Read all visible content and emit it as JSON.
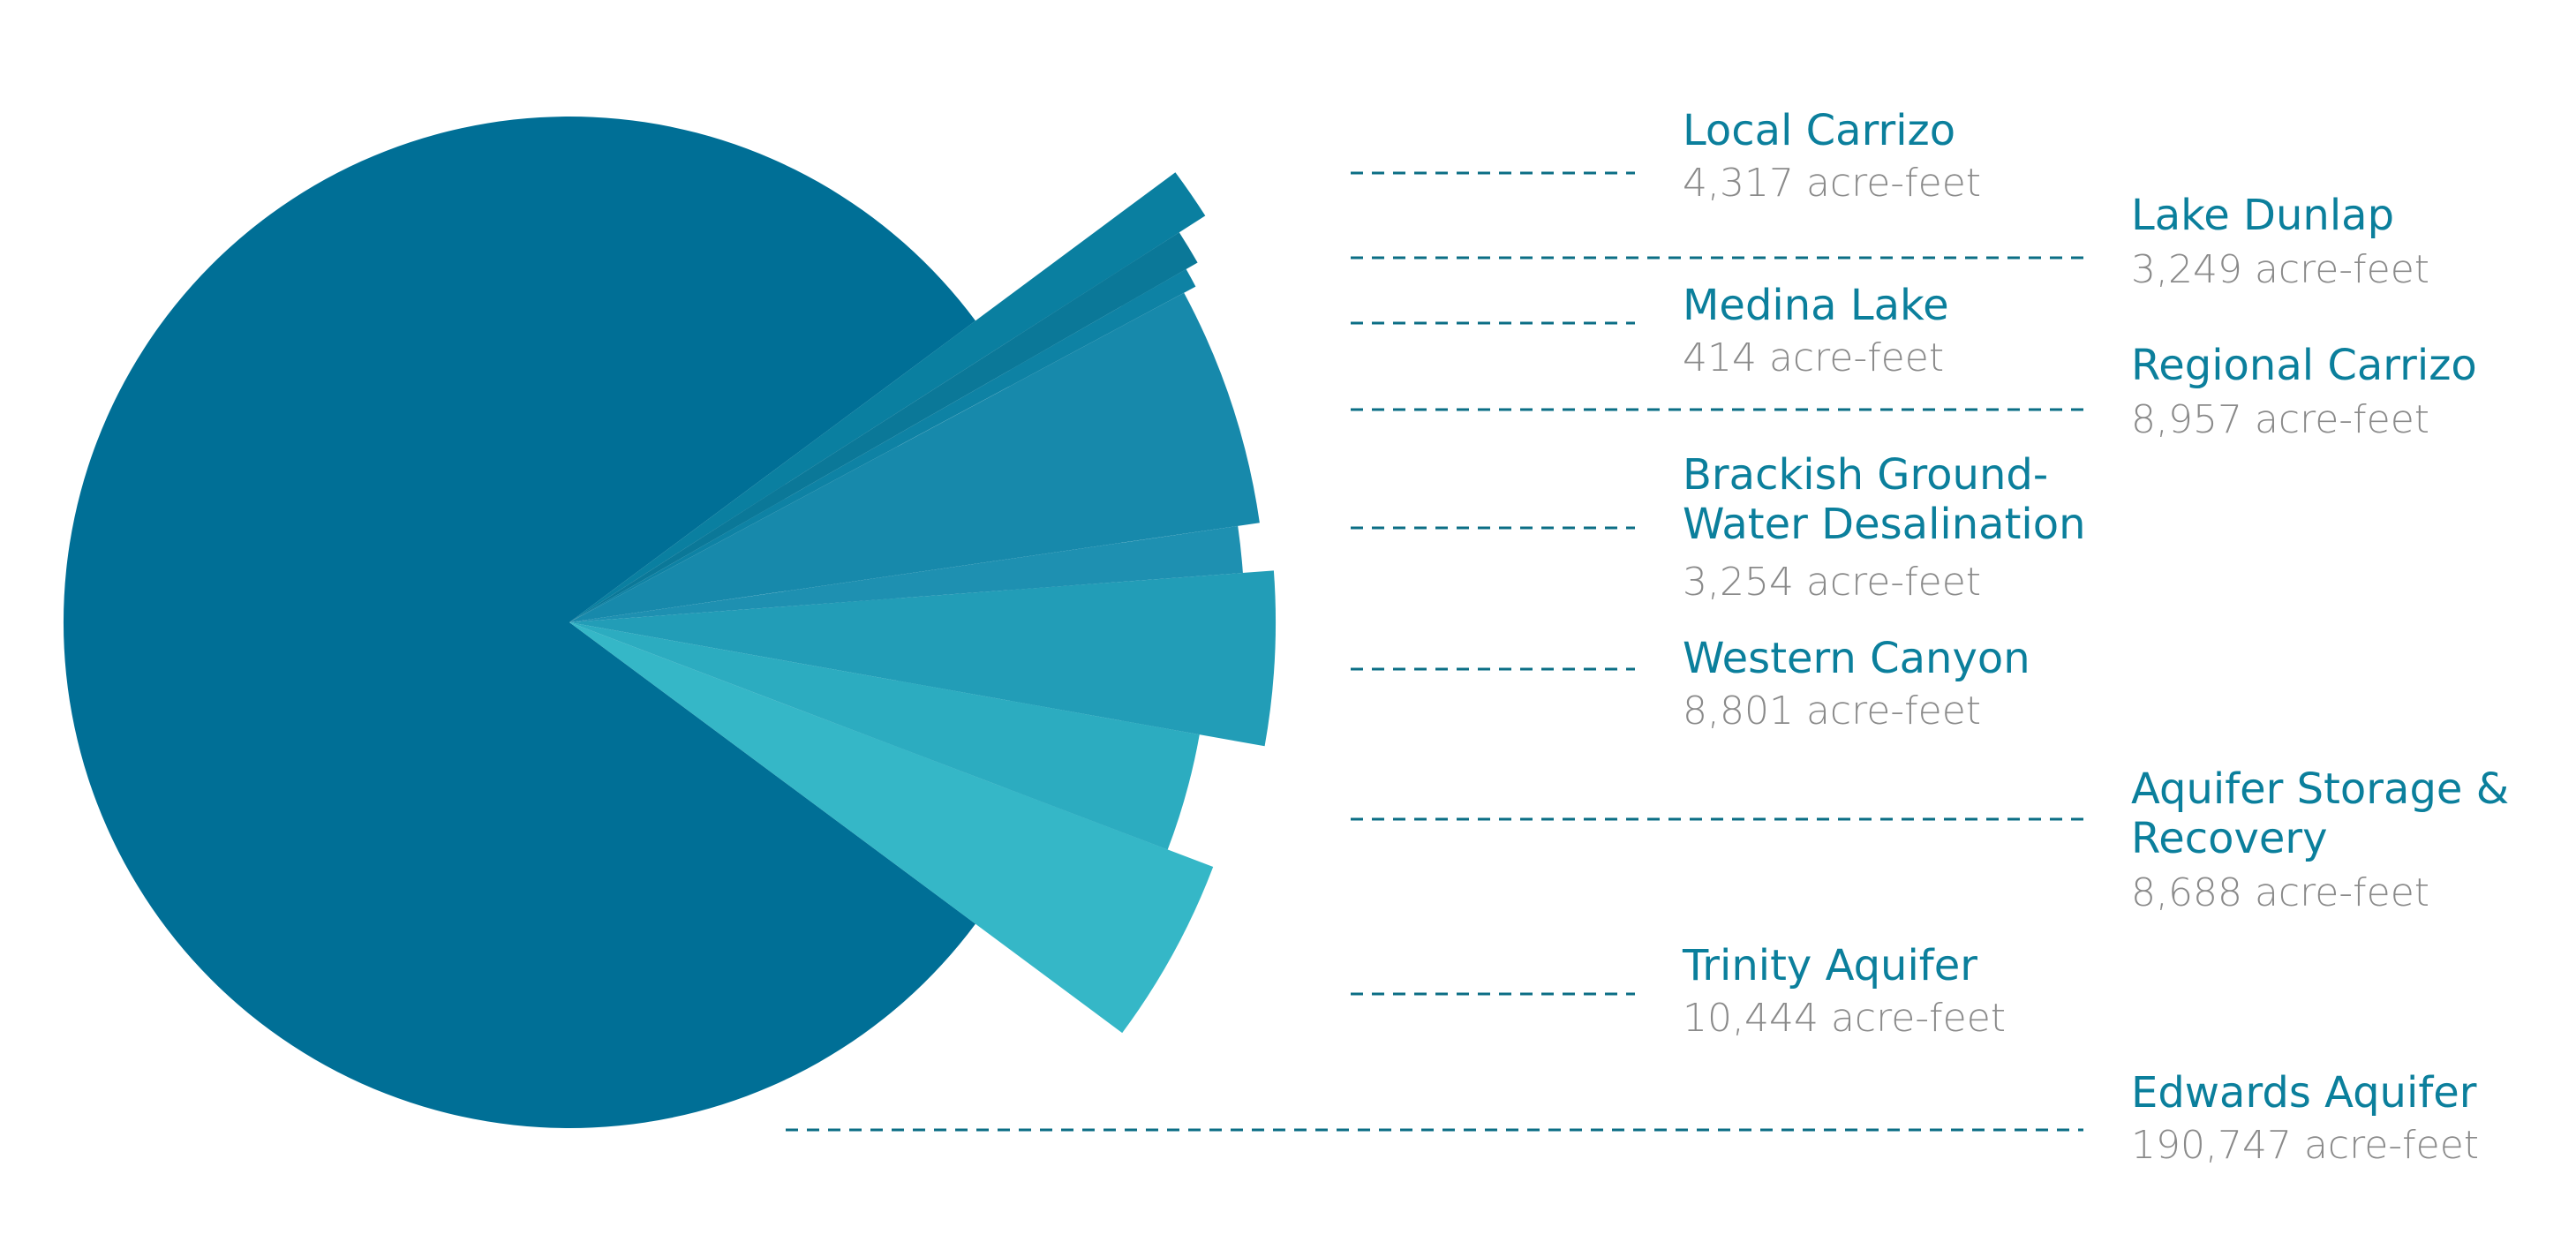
{
  "chart_data": {
    "type": "pie",
    "unit": "acre-feet",
    "slices": [
      {
        "label": "Local Carrizo",
        "value": 4317,
        "display_value": "4,317 acre-feet",
        "color": "#0a7fa0"
      },
      {
        "label": "Lake Dunlap",
        "value": 3249,
        "display_value": "3,249 acre-feet",
        "color": "#0b7898"
      },
      {
        "label": "Medina Lake",
        "value": 414,
        "display_value": "414 acre-feet",
        "color": "#0e82a4"
      },
      {
        "label": "Regional Carrizo",
        "value": 8957,
        "display_value": "8,957 acre-feet",
        "color": "#1789ab"
      },
      {
        "label": "Brackish Ground-Water Desalination",
        "value": 3254,
        "display_value": "3,254 acre-feet",
        "color": "#1e90b1"
      },
      {
        "label": "Western Canyon",
        "value": 8801,
        "display_value": "8,801 acre-feet",
        "color": "#229db7"
      },
      {
        "label": "Aquifer Storage & Recovery",
        "value": 8688,
        "display_value": "8,688 acre-feet",
        "color": "#2cacc0"
      },
      {
        "label": "Trinity Aquifer",
        "value": 10444,
        "display_value": "10,444 acre-feet",
        "color": "#35b7c7"
      },
      {
        "label": "Edwards Aquifer",
        "value": 190747,
        "display_value": "190,747 acre-feet",
        "color": "#006f96"
      }
    ]
  }
}
